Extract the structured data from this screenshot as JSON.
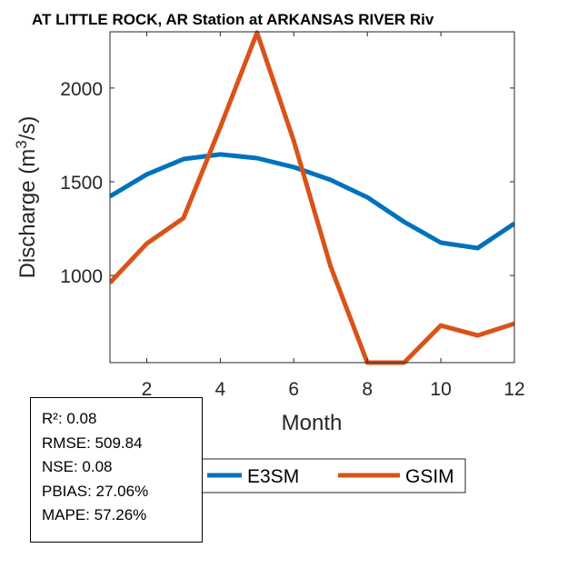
{
  "chart_data": {
    "type": "line",
    "title": "AT LITTLE ROCK, AR  Station at  ARKANSAS RIVER  Riv",
    "xlabel": "Month",
    "ylabel": "Discharge (m³/s)",
    "ylabel_parts": {
      "pre": "Discharge (m",
      "sup": "3",
      "post": "/s)"
    },
    "x": [
      1,
      2,
      3,
      4,
      5,
      6,
      7,
      8,
      9,
      10,
      11,
      12
    ],
    "xlim": [
      1,
      12
    ],
    "ylim": [
      535,
      2300
    ],
    "xticks": [
      2,
      4,
      6,
      8,
      10,
      12
    ],
    "yticks": [
      1000,
      1500,
      2000
    ],
    "grid": false,
    "legend_position": "bottom-center",
    "series": [
      {
        "name": "E3SM",
        "color": "#0072BD",
        "values": [
          1422,
          1539,
          1621,
          1646,
          1626,
          1578,
          1510,
          1417,
          1286,
          1175,
          1146,
          1277
        ]
      },
      {
        "name": "GSIM",
        "color": "#D95319",
        "values": [
          961,
          1170,
          1306,
          1791,
          2296,
          1718,
          1049,
          535,
          535,
          733,
          680,
          743
        ]
      }
    ]
  },
  "stats": [
    "R²: 0.08",
    "RMSE: 509.84",
    "NSE: 0.08",
    "PBIAS: 27.06%",
    "MAPE: 57.26%"
  ]
}
